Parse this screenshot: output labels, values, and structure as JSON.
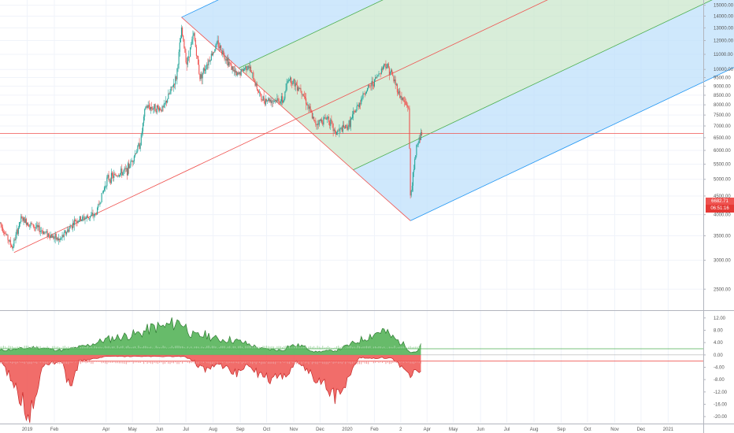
{
  "chart_data": [
    {
      "type": "candlestick",
      "title": "",
      "y_scale": "log",
      "y_ticks": [
        "15000.00",
        "14000.00",
        "13000.00",
        "12000.00",
        "11000.00",
        "10000.00",
        "9500.00",
        "9000.00",
        "8500.00",
        "8000.00",
        "7500.00",
        "7000.00",
        "6500.00",
        "6000.00",
        "5500.00",
        "5000.00",
        "4500.00",
        "4000.00",
        "3500.00",
        "3000.00",
        "2500.00"
      ],
      "y_range": [
        2200,
        15500
      ],
      "x_range": [
        "2018-12-01",
        "2021-02-10"
      ],
      "x_ticks": [
        {
          "label": "2019",
          "date": "2019-01-01"
        },
        {
          "label": "Feb",
          "date": "2019-02-01"
        },
        {
          "label": "Apr",
          "date": "2019-04-01"
        },
        {
          "label": "May",
          "date": "2019-05-01"
        },
        {
          "label": "Jun",
          "date": "2019-06-01"
        },
        {
          "label": "Jul",
          "date": "2019-07-01"
        },
        {
          "label": "Aug",
          "date": "2019-08-01"
        },
        {
          "label": "Sep",
          "date": "2019-09-01"
        },
        {
          "label": "Oct",
          "date": "2019-10-01"
        },
        {
          "label": "Nov",
          "date": "2019-11-01"
        },
        {
          "label": "Dec",
          "date": "2019-12-01"
        },
        {
          "label": "2020",
          "date": "2020-01-01"
        },
        {
          "label": "Feb",
          "date": "2020-02-01"
        },
        {
          "label": "2",
          "date": "2020-03-02"
        },
        {
          "label": "Apr",
          "date": "2020-04-01"
        },
        {
          "label": "May",
          "date": "2020-05-01"
        },
        {
          "label": "Jun",
          "date": "2020-06-01"
        },
        {
          "label": "Jul",
          "date": "2020-07-01"
        },
        {
          "label": "Aug",
          "date": "2020-08-01"
        },
        {
          "label": "Sep",
          "date": "2020-09-01"
        },
        {
          "label": "Oct",
          "date": "2020-10-01"
        },
        {
          "label": "Nov",
          "date": "2020-11-01"
        },
        {
          "label": "Dec",
          "date": "2020-12-01"
        },
        {
          "label": "2021",
          "date": "2021-01-01"
        }
      ],
      "price_path": [
        [
          "2018-12-01",
          3800
        ],
        [
          "2018-12-15",
          3250
        ],
        [
          "2018-12-25",
          3900
        ],
        [
          "2019-01-10",
          3700
        ],
        [
          "2019-02-07",
          3400
        ],
        [
          "2019-02-25",
          3850
        ],
        [
          "2019-03-20",
          4000
        ],
        [
          "2019-04-02",
          5000
        ],
        [
          "2019-04-25",
          5300
        ],
        [
          "2019-05-10",
          6300
        ],
        [
          "2019-05-16",
          7900
        ],
        [
          "2019-06-05",
          7800
        ],
        [
          "2019-06-20",
          9500
        ],
        [
          "2019-06-26",
          12800
        ],
        [
          "2019-07-02",
          10400
        ],
        [
          "2019-07-10",
          12500
        ],
        [
          "2019-07-17",
          9500
        ],
        [
          "2019-08-06",
          11800
        ],
        [
          "2019-08-28",
          9600
        ],
        [
          "2019-09-10",
          10300
        ],
        [
          "2019-09-25",
          8300
        ],
        [
          "2019-10-20",
          8200
        ],
        [
          "2019-10-26",
          9500
        ],
        [
          "2019-11-10",
          8800
        ],
        [
          "2019-11-25",
          7100
        ],
        [
          "2019-12-10",
          7400
        ],
        [
          "2019-12-18",
          6700
        ],
        [
          "2020-01-02",
          7000
        ],
        [
          "2020-01-20",
          8600
        ],
        [
          "2020-02-01",
          9300
        ],
        [
          "2020-02-13",
          10400
        ],
        [
          "2020-02-20",
          9800
        ],
        [
          "2020-03-01",
          8500
        ],
        [
          "2020-03-08",
          8000
        ],
        [
          "2020-03-11",
          7900
        ],
        [
          "2020-03-13",
          4500
        ],
        [
          "2020-03-17",
          5300
        ],
        [
          "2020-03-20",
          6200
        ],
        [
          "2020-03-26",
          6682.71
        ]
      ],
      "price_labels": [
        {
          "label": "6682.71",
          "value": 6682.71
        },
        {
          "label": "06:51:16",
          "value": 6450
        }
      ],
      "pitchfork": {
        "pivots": [
          {
            "date": "2018-12-17",
            "value": 3150
          },
          {
            "date": "2019-06-26",
            "value": 13900
          },
          {
            "date": "2020-03-13",
            "value": 3850
          }
        ],
        "handle_color": "#ef5350",
        "inner_line_color": "#4caf50",
        "outer_line_color": "#2196f3",
        "inner_fill": "#c8e6c9",
        "outer_fill": "#bbdefb"
      },
      "horizontal_line": {
        "value": 6682.71,
        "color": "#ef5350"
      }
    },
    {
      "type": "area",
      "title": "",
      "y_ticks": [
        "12.00",
        "8.00",
        "4.00",
        "0.00",
        "-4.00",
        "-8.00",
        "-12.00",
        "-16.00",
        "-20.00"
      ],
      "y_range": [
        -22,
        14
      ],
      "series": [
        {
          "color": "#2e7d32",
          "fill": "#4caf50",
          "values": [
            [
              "2018-12-01",
              1.5
            ],
            [
              "2018-12-25",
              2
            ],
            [
              "2019-01-10",
              2.5
            ],
            [
              "2019-02-10",
              1.5
            ],
            [
              "2019-03-10",
              3
            ],
            [
              "2019-04-01",
              5
            ],
            [
              "2019-04-20",
              6
            ],
            [
              "2019-05-10",
              7
            ],
            [
              "2019-05-25",
              9
            ],
            [
              "2019-06-05",
              9
            ],
            [
              "2019-06-25",
              11
            ],
            [
              "2019-07-10",
              6
            ],
            [
              "2019-07-25",
              6.5
            ],
            [
              "2019-08-06",
              5
            ],
            [
              "2019-08-20",
              5
            ],
            [
              "2019-09-05",
              4
            ],
            [
              "2019-09-25",
              2
            ],
            [
              "2019-10-20",
              1.5
            ],
            [
              "2019-10-26",
              3
            ],
            [
              "2019-11-10",
              3
            ],
            [
              "2019-11-25",
              1
            ],
            [
              "2019-12-20",
              1.5
            ],
            [
              "2020-01-10",
              4
            ],
            [
              "2020-01-25",
              6
            ],
            [
              "2020-02-10",
              8
            ],
            [
              "2020-02-15",
              7
            ],
            [
              "2020-02-25",
              5
            ],
            [
              "2020-03-05",
              3.5
            ],
            [
              "2020-03-13",
              1
            ],
            [
              "2020-03-20",
              1
            ],
            [
              "2020-03-26",
              3.5
            ]
          ]
        },
        {
          "color": "#c62828",
          "fill": "#ef5350",
          "values": [
            [
              "2018-12-01",
              -2
            ],
            [
              "2018-12-15",
              -8
            ],
            [
              "2018-12-28",
              -16
            ],
            [
              "2019-01-05",
              -19
            ],
            [
              "2019-01-20",
              -3
            ],
            [
              "2019-02-10",
              -2
            ],
            [
              "2019-02-15",
              -8
            ],
            [
              "2019-02-20",
              -12
            ],
            [
              "2019-03-01",
              -2
            ],
            [
              "2019-04-01",
              -0.5
            ],
            [
              "2019-06-01",
              -0.5
            ],
            [
              "2019-06-30",
              -0.5
            ],
            [
              "2019-07-10",
              -2
            ],
            [
              "2019-07-20",
              -5
            ],
            [
              "2019-08-05",
              -3
            ],
            [
              "2019-08-28",
              -6
            ],
            [
              "2019-09-10",
              -3
            ],
            [
              "2019-09-25",
              -7
            ],
            [
              "2019-10-10",
              -8
            ],
            [
              "2019-10-25",
              -6
            ],
            [
              "2019-11-05",
              -2
            ],
            [
              "2019-11-20",
              -6
            ],
            [
              "2019-12-01",
              -9
            ],
            [
              "2019-12-18",
              -13
            ],
            [
              "2020-01-01",
              -8
            ],
            [
              "2020-01-15",
              -1
            ],
            [
              "2020-02-20",
              -1
            ],
            [
              "2020-02-28",
              -3
            ],
            [
              "2020-03-08",
              -4
            ],
            [
              "2020-03-13",
              -6
            ],
            [
              "2020-03-20",
              -5
            ],
            [
              "2020-03-26",
              -5
            ]
          ]
        }
      ],
      "horizontal_lines": [
        {
          "value": 2,
          "color": "#4caf50"
        },
        {
          "value": -2,
          "color": "#ef5350"
        }
      ]
    }
  ]
}
